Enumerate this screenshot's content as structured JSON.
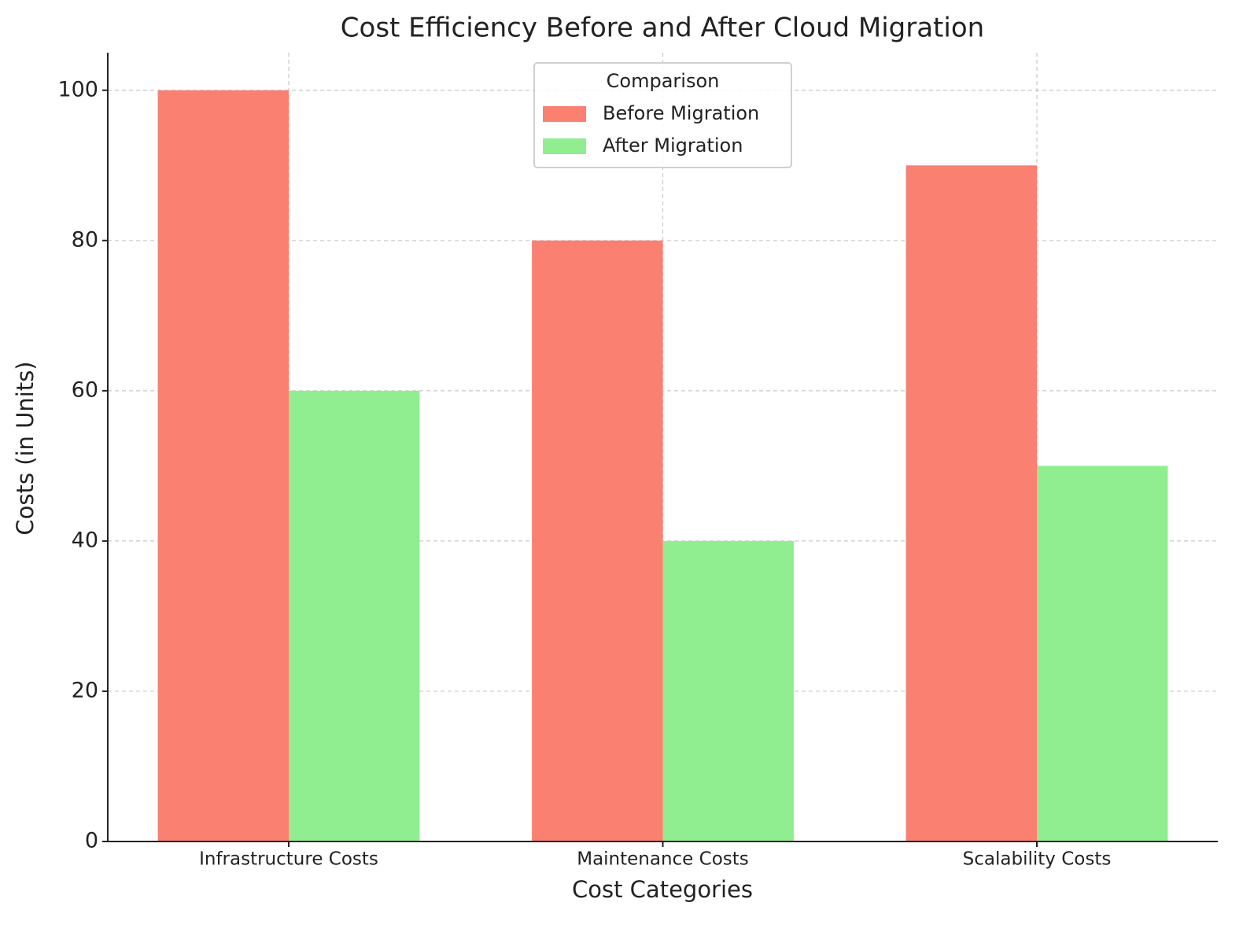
{
  "chart_data": {
    "type": "bar",
    "title": "Cost Efficiency Before and After Cloud Migration",
    "x_label": "Cost Categories",
    "y_label": "Costs (in Units)",
    "categories": [
      "Infrastructure Costs",
      "Maintenance Costs",
      "Scalability Costs"
    ],
    "series": [
      {
        "name": "Before Migration",
        "color": "#fa8072",
        "values": [
          100,
          80,
          90
        ]
      },
      {
        "name": "After Migration",
        "color": "#90ee90",
        "values": [
          60,
          40,
          50
        ]
      }
    ],
    "ylim": [
      0,
      105
    ],
    "yticks": [
      0,
      20,
      40,
      60,
      80,
      100
    ],
    "grid": true,
    "legend_title": "Comparison",
    "legend": "upper center"
  }
}
